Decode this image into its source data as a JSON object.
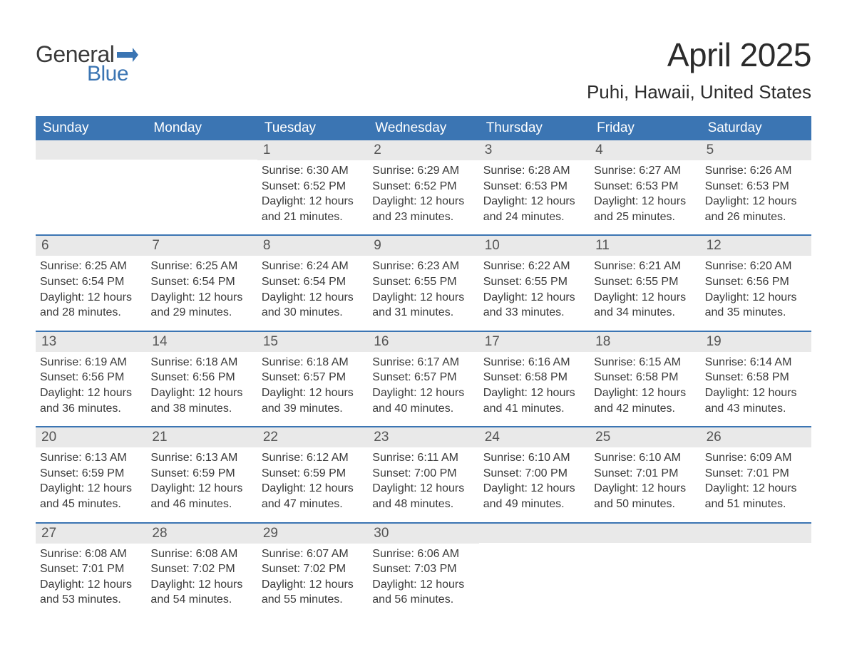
{
  "logo": {
    "word1": "General",
    "word2": "Blue",
    "flag_color": "#3b75b3"
  },
  "title": "April 2025",
  "location": "Puhi, Hawaii, United States",
  "colors": {
    "header_bg": "#3b75b3",
    "header_text": "#ffffff",
    "daynum_bg": "#e9e9e9",
    "body_text": "#3a3a3a",
    "daynum_text": "#555555",
    "week_border": "#3b75b3",
    "page_bg": "#ffffff"
  },
  "fonts": {
    "title_size": 46,
    "location_size": 26,
    "dayhead_size": 19,
    "daynum_size": 19,
    "body_size": 16
  },
  "day_names": [
    "Sunday",
    "Monday",
    "Tuesday",
    "Wednesday",
    "Thursday",
    "Friday",
    "Saturday"
  ],
  "weeks": [
    [
      {
        "num": "",
        "sunrise": "",
        "sunset": "",
        "daylight": ""
      },
      {
        "num": "",
        "sunrise": "",
        "sunset": "",
        "daylight": ""
      },
      {
        "num": "1",
        "sunrise": "Sunrise: 6:30 AM",
        "sunset": "Sunset: 6:52 PM",
        "daylight": "Daylight: 12 hours and 21 minutes."
      },
      {
        "num": "2",
        "sunrise": "Sunrise: 6:29 AM",
        "sunset": "Sunset: 6:52 PM",
        "daylight": "Daylight: 12 hours and 23 minutes."
      },
      {
        "num": "3",
        "sunrise": "Sunrise: 6:28 AM",
        "sunset": "Sunset: 6:53 PM",
        "daylight": "Daylight: 12 hours and 24 minutes."
      },
      {
        "num": "4",
        "sunrise": "Sunrise: 6:27 AM",
        "sunset": "Sunset: 6:53 PM",
        "daylight": "Daylight: 12 hours and 25 minutes."
      },
      {
        "num": "5",
        "sunrise": "Sunrise: 6:26 AM",
        "sunset": "Sunset: 6:53 PM",
        "daylight": "Daylight: 12 hours and 26 minutes."
      }
    ],
    [
      {
        "num": "6",
        "sunrise": "Sunrise: 6:25 AM",
        "sunset": "Sunset: 6:54 PM",
        "daylight": "Daylight: 12 hours and 28 minutes."
      },
      {
        "num": "7",
        "sunrise": "Sunrise: 6:25 AM",
        "sunset": "Sunset: 6:54 PM",
        "daylight": "Daylight: 12 hours and 29 minutes."
      },
      {
        "num": "8",
        "sunrise": "Sunrise: 6:24 AM",
        "sunset": "Sunset: 6:54 PM",
        "daylight": "Daylight: 12 hours and 30 minutes."
      },
      {
        "num": "9",
        "sunrise": "Sunrise: 6:23 AM",
        "sunset": "Sunset: 6:55 PM",
        "daylight": "Daylight: 12 hours and 31 minutes."
      },
      {
        "num": "10",
        "sunrise": "Sunrise: 6:22 AM",
        "sunset": "Sunset: 6:55 PM",
        "daylight": "Daylight: 12 hours and 33 minutes."
      },
      {
        "num": "11",
        "sunrise": "Sunrise: 6:21 AM",
        "sunset": "Sunset: 6:55 PM",
        "daylight": "Daylight: 12 hours and 34 minutes."
      },
      {
        "num": "12",
        "sunrise": "Sunrise: 6:20 AM",
        "sunset": "Sunset: 6:56 PM",
        "daylight": "Daylight: 12 hours and 35 minutes."
      }
    ],
    [
      {
        "num": "13",
        "sunrise": "Sunrise: 6:19 AM",
        "sunset": "Sunset: 6:56 PM",
        "daylight": "Daylight: 12 hours and 36 minutes."
      },
      {
        "num": "14",
        "sunrise": "Sunrise: 6:18 AM",
        "sunset": "Sunset: 6:56 PM",
        "daylight": "Daylight: 12 hours and 38 minutes."
      },
      {
        "num": "15",
        "sunrise": "Sunrise: 6:18 AM",
        "sunset": "Sunset: 6:57 PM",
        "daylight": "Daylight: 12 hours and 39 minutes."
      },
      {
        "num": "16",
        "sunrise": "Sunrise: 6:17 AM",
        "sunset": "Sunset: 6:57 PM",
        "daylight": "Daylight: 12 hours and 40 minutes."
      },
      {
        "num": "17",
        "sunrise": "Sunrise: 6:16 AM",
        "sunset": "Sunset: 6:58 PM",
        "daylight": "Daylight: 12 hours and 41 minutes."
      },
      {
        "num": "18",
        "sunrise": "Sunrise: 6:15 AM",
        "sunset": "Sunset: 6:58 PM",
        "daylight": "Daylight: 12 hours and 42 minutes."
      },
      {
        "num": "19",
        "sunrise": "Sunrise: 6:14 AM",
        "sunset": "Sunset: 6:58 PM",
        "daylight": "Daylight: 12 hours and 43 minutes."
      }
    ],
    [
      {
        "num": "20",
        "sunrise": "Sunrise: 6:13 AM",
        "sunset": "Sunset: 6:59 PM",
        "daylight": "Daylight: 12 hours and 45 minutes."
      },
      {
        "num": "21",
        "sunrise": "Sunrise: 6:13 AM",
        "sunset": "Sunset: 6:59 PM",
        "daylight": "Daylight: 12 hours and 46 minutes."
      },
      {
        "num": "22",
        "sunrise": "Sunrise: 6:12 AM",
        "sunset": "Sunset: 6:59 PM",
        "daylight": "Daylight: 12 hours and 47 minutes."
      },
      {
        "num": "23",
        "sunrise": "Sunrise: 6:11 AM",
        "sunset": "Sunset: 7:00 PM",
        "daylight": "Daylight: 12 hours and 48 minutes."
      },
      {
        "num": "24",
        "sunrise": "Sunrise: 6:10 AM",
        "sunset": "Sunset: 7:00 PM",
        "daylight": "Daylight: 12 hours and 49 minutes."
      },
      {
        "num": "25",
        "sunrise": "Sunrise: 6:10 AM",
        "sunset": "Sunset: 7:01 PM",
        "daylight": "Daylight: 12 hours and 50 minutes."
      },
      {
        "num": "26",
        "sunrise": "Sunrise: 6:09 AM",
        "sunset": "Sunset: 7:01 PM",
        "daylight": "Daylight: 12 hours and 51 minutes."
      }
    ],
    [
      {
        "num": "27",
        "sunrise": "Sunrise: 6:08 AM",
        "sunset": "Sunset: 7:01 PM",
        "daylight": "Daylight: 12 hours and 53 minutes."
      },
      {
        "num": "28",
        "sunrise": "Sunrise: 6:08 AM",
        "sunset": "Sunset: 7:02 PM",
        "daylight": "Daylight: 12 hours and 54 minutes."
      },
      {
        "num": "29",
        "sunrise": "Sunrise: 6:07 AM",
        "sunset": "Sunset: 7:02 PM",
        "daylight": "Daylight: 12 hours and 55 minutes."
      },
      {
        "num": "30",
        "sunrise": "Sunrise: 6:06 AM",
        "sunset": "Sunset: 7:03 PM",
        "daylight": "Daylight: 12 hours and 56 minutes."
      },
      {
        "num": "",
        "sunrise": "",
        "sunset": "",
        "daylight": ""
      },
      {
        "num": "",
        "sunrise": "",
        "sunset": "",
        "daylight": ""
      },
      {
        "num": "",
        "sunrise": "",
        "sunset": "",
        "daylight": ""
      }
    ]
  ]
}
